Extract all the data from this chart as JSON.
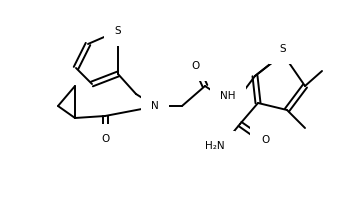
{
  "bg_color": "#ffffff",
  "line_color": "#000000",
  "line_width": 1.4,
  "figsize": [
    3.6,
    2.06
  ],
  "dpi": 100,
  "xlim": [
    0,
    360
  ],
  "ylim": [
    0,
    206
  ]
}
